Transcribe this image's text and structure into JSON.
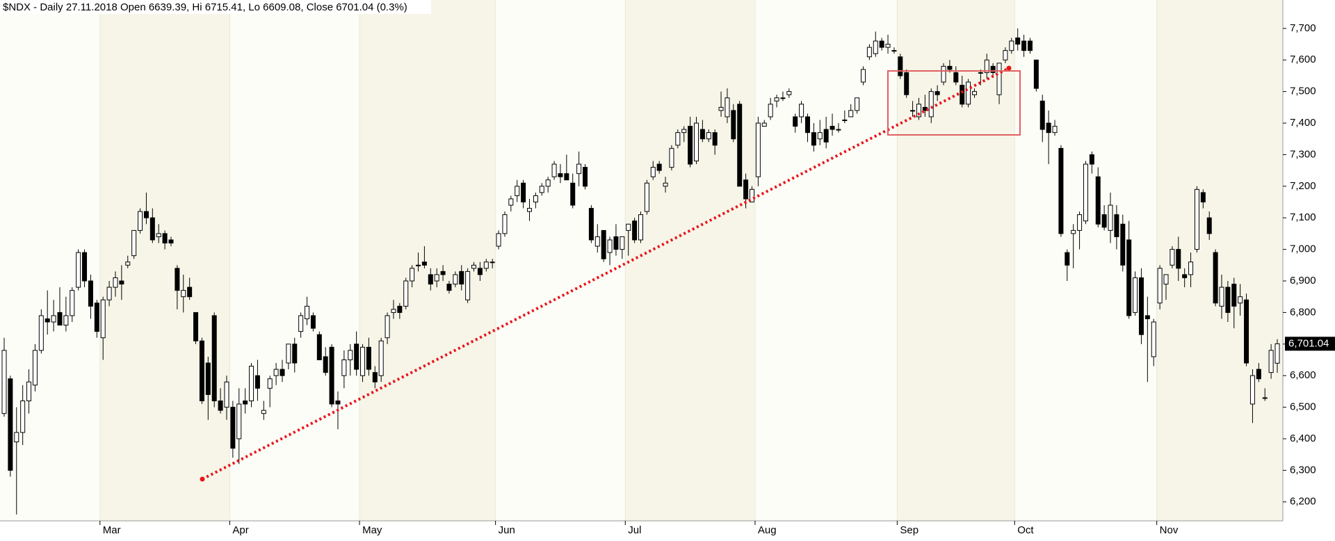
{
  "chart_data": {
    "type": "candlestick",
    "title": "$NDX - Daily 27.11.2018 Open 6639.39, Hi 6715.41, Lo 6609.08, Close 6701.04 (0.3%)",
    "categories": [
      null,
      null,
      null,
      null,
      null,
      null,
      null,
      null,
      null,
      null,
      null,
      null,
      null,
      null,
      null,
      null,
      "Mar",
      null,
      null,
      null,
      null,
      null,
      null,
      null,
      null,
      null,
      null,
      null,
      null,
      null,
      null,
      null,
      null,
      null,
      null,
      null,
      null,
      "Apr",
      null,
      null,
      null,
      null,
      null,
      null,
      null,
      null,
      null,
      null,
      null,
      null,
      null,
      null,
      null,
      null,
      null,
      null,
      null,
      null,
      "May",
      null,
      null,
      null,
      null,
      null,
      null,
      null,
      null,
      null,
      null,
      null,
      null,
      null,
      null,
      null,
      null,
      null,
      null,
      null,
      null,
      null,
      "Jun",
      null,
      null,
      null,
      null,
      null,
      null,
      null,
      null,
      null,
      null,
      null,
      null,
      null,
      null,
      null,
      null,
      null,
      null,
      null,
      null,
      "Jul",
      null,
      null,
      null,
      null,
      null,
      null,
      null,
      null,
      null,
      null,
      null,
      null,
      null,
      null,
      null,
      null,
      null,
      null,
      null,
      null,
      "Aug",
      null,
      null,
      null,
      null,
      null,
      null,
      null,
      null,
      null,
      null,
      null,
      null,
      null,
      null,
      null,
      null,
      null,
      null,
      null,
      null,
      null,
      null,
      "Sep",
      null,
      null,
      null,
      null,
      null,
      null,
      null,
      null,
      null,
      null,
      null,
      null,
      null,
      null,
      null,
      null,
      null,
      null,
      "Oct",
      null,
      null,
      null,
      null,
      null,
      null,
      null,
      null,
      null,
      null,
      null,
      null,
      null,
      null,
      null,
      null,
      null,
      null,
      null,
      null,
      null,
      null,
      "Nov",
      null,
      null,
      null,
      null,
      null,
      null,
      null,
      null,
      null,
      null,
      null,
      null,
      null,
      null,
      null,
      null,
      null,
      null,
      null
    ],
    "ohlc": [
      [
        6480,
        6720,
        6470,
        6680
      ],
      [
        6590,
        6600,
        6280,
        6300
      ],
      [
        6390,
        6500,
        6160,
        6420
      ],
      [
        6420,
        6570,
        6380,
        6520
      ],
      [
        6520,
        6620,
        6480,
        6580
      ],
      [
        6570,
        6700,
        6550,
        6680
      ],
      [
        6680,
        6810,
        6670,
        6790
      ],
      [
        6780,
        6870,
        6730,
        6770
      ],
      [
        6770,
        6840,
        6740,
        6790
      ],
      [
        6800,
        6880,
        6770,
        6760
      ],
      [
        6760,
        6850,
        6740,
        6790
      ],
      [
        6790,
        6880,
        6770,
        6870
      ],
      [
        6880,
        7000,
        6870,
        6990
      ],
      [
        6990,
        7000,
        6880,
        6900
      ],
      [
        6900,
        6920,
        6780,
        6820
      ],
      [
        6830,
        6840,
        6720,
        6740
      ],
      [
        6720,
        6850,
        6650,
        6840
      ],
      [
        6840,
        6900,
        6820,
        6880
      ],
      [
        6880,
        6930,
        6850,
        6910
      ],
      [
        6900,
        6950,
        6840,
        6890
      ],
      [
        6950,
        6980,
        6940,
        6960
      ],
      [
        6980,
        7060,
        6970,
        7060
      ],
      [
        7060,
        7130,
        7050,
        7120
      ],
      [
        7120,
        7180,
        7080,
        7100
      ],
      [
        7100,
        7130,
        7020,
        7030
      ],
      [
        7040,
        7080,
        7020,
        7050
      ],
      [
        7050,
        7060,
        7000,
        7020
      ],
      [
        7030,
        7040,
        7010,
        7020
      ],
      [
        6940,
        6950,
        6810,
        6870
      ],
      [
        6850,
        6920,
        6800,
        6870
      ],
      [
        6880,
        6910,
        6840,
        6850
      ],
      [
        6800,
        6800,
        6700,
        6710
      ],
      [
        6710,
        6720,
        6510,
        6520
      ],
      [
        6640,
        6660,
        6460,
        6540
      ],
      [
        6790,
        6800,
        6500,
        6520
      ],
      [
        6520,
        6560,
        6480,
        6490
      ],
      [
        6500,
        6600,
        6460,
        6580
      ],
      [
        6500,
        6520,
        6340,
        6370
      ],
      [
        6400,
        6560,
        6320,
        6510
      ],
      [
        6520,
        6560,
        6480,
        6510
      ],
      [
        6520,
        6640,
        6500,
        6630
      ],
      [
        6600,
        6650,
        6520,
        6560
      ],
      [
        6480,
        6520,
        6460,
        6490
      ],
      [
        6560,
        6600,
        6500,
        6590
      ],
      [
        6600,
        6640,
        6570,
        6620
      ],
      [
        6620,
        6650,
        6580,
        6600
      ],
      [
        6640,
        6700,
        6620,
        6700
      ],
      [
        6700,
        6720,
        6610,
        6640
      ],
      [
        6740,
        6800,
        6720,
        6790
      ],
      [
        6780,
        6850,
        6760,
        6820
      ],
      [
        6790,
        6800,
        6740,
        6750
      ],
      [
        6730,
        6740,
        6650,
        6650
      ],
      [
        6660,
        6690,
        6600,
        6610
      ],
      [
        6690,
        6700,
        6500,
        6510
      ],
      [
        6520,
        6550,
        6430,
        6510
      ],
      [
        6600,
        6680,
        6560,
        6650
      ],
      [
        6650,
        6700,
        6600,
        6680
      ],
      [
        6700,
        6740,
        6600,
        6620
      ],
      [
        6600,
        6700,
        6580,
        6690
      ],
      [
        6690,
        6720,
        6600,
        6620
      ],
      [
        6610,
        6630,
        6560,
        6580
      ],
      [
        6600,
        6720,
        6580,
        6710
      ],
      [
        6720,
        6800,
        6700,
        6790
      ],
      [
        6800,
        6840,
        6780,
        6810
      ],
      [
        6820,
        6830,
        6780,
        6800
      ],
      [
        6820,
        6910,
        6810,
        6900
      ],
      [
        6900,
        6950,
        6880,
        6940
      ],
      [
        6950,
        6990,
        6930,
        6950
      ],
      [
        6960,
        7010,
        6940,
        6950
      ],
      [
        6920,
        6940,
        6870,
        6890
      ],
      [
        6900,
        6940,
        6880,
        6920
      ],
      [
        6930,
        6950,
        6900,
        6920
      ],
      [
        6890,
        6900,
        6860,
        6870
      ],
      [
        6890,
        6930,
        6880,
        6920
      ],
      [
        6930,
        6950,
        6870,
        6890
      ],
      [
        6840,
        6940,
        6830,
        6930
      ],
      [
        6940,
        6960,
        6930,
        6950
      ],
      [
        6940,
        6960,
        6900,
        6920
      ],
      [
        6940,
        6970,
        6930,
        6960
      ],
      [
        6960,
        6970,
        6940,
        6960
      ],
      [
        7010,
        7060,
        7000,
        7050
      ],
      [
        7050,
        7120,
        7040,
        7110
      ],
      [
        7140,
        7170,
        7120,
        7160
      ],
      [
        7170,
        7220,
        7150,
        7200
      ],
      [
        7210,
        7220,
        7130,
        7150
      ],
      [
        7120,
        7160,
        7090,
        7130
      ],
      [
        7150,
        7180,
        7130,
        7170
      ],
      [
        7180,
        7210,
        7170,
        7200
      ],
      [
        7200,
        7230,
        7180,
        7220
      ],
      [
        7230,
        7280,
        7220,
        7270
      ],
      [
        7240,
        7270,
        7210,
        7230
      ],
      [
        7240,
        7300,
        7220,
        7220
      ],
      [
        7210,
        7240,
        7130,
        7140
      ],
      [
        7240,
        7310,
        7200,
        7270
      ],
      [
        7260,
        7270,
        7190,
        7200
      ],
      [
        7130,
        7140,
        7020,
        7030
      ],
      [
        7010,
        7080,
        6990,
        7040
      ],
      [
        7060,
        7060,
        6960,
        6970
      ],
      [
        6990,
        7040,
        6950,
        7030
      ],
      [
        7040,
        7080,
        6980,
        7000
      ],
      [
        7000,
        7040,
        6970,
        7040
      ],
      [
        7060,
        7080,
        6980,
        7080
      ],
      [
        7090,
        7100,
        7020,
        7030
      ],
      [
        7030,
        7120,
        7020,
        7110
      ],
      [
        7120,
        7220,
        7110,
        7210
      ],
      [
        7230,
        7280,
        7220,
        7260
      ],
      [
        7270,
        7280,
        7240,
        7250
      ],
      [
        7200,
        7230,
        7180,
        7210
      ],
      [
        7260,
        7330,
        7250,
        7320
      ],
      [
        7330,
        7380,
        7320,
        7370
      ],
      [
        7370,
        7390,
        7340,
        7380
      ],
      [
        7390,
        7420,
        7260,
        7270
      ],
      [
        7280,
        7420,
        7270,
        7400
      ],
      [
        7380,
        7410,
        7340,
        7350
      ],
      [
        7350,
        7380,
        7340,
        7370
      ],
      [
        7370,
        7380,
        7300,
        7330
      ],
      [
        7440,
        7500,
        7420,
        7450
      ],
      [
        7420,
        7510,
        7400,
        7480
      ],
      [
        7440,
        7460,
        7340,
        7350
      ],
      [
        7460,
        7470,
        7200,
        7200
      ],
      [
        7220,
        7240,
        7130,
        7160
      ],
      [
        7150,
        7200,
        7150,
        7190
      ],
      [
        7230,
        7420,
        7200,
        7400
      ],
      [
        7390,
        7410,
        7390,
        7400
      ],
      [
        7420,
        7480,
        7410,
        7460
      ],
      [
        7470,
        7490,
        7450,
        7480
      ],
      [
        7480,
        7500,
        7470,
        7480
      ],
      [
        7490,
        7510,
        7480,
        7500
      ],
      [
        7420,
        7430,
        7370,
        7390
      ],
      [
        7420,
        7470,
        7400,
        7460
      ],
      [
        7420,
        7430,
        7340,
        7370
      ],
      [
        7370,
        7400,
        7310,
        7330
      ],
      [
        7350,
        7410,
        7330,
        7370
      ],
      [
        7380,
        7420,
        7320,
        7340
      ],
      [
        7390,
        7430,
        7360,
        7380
      ],
      [
        7380,
        7400,
        7370,
        7380
      ],
      [
        7410,
        7440,
        7400,
        7410
      ],
      [
        7420,
        7460,
        7420,
        7440
      ],
      [
        7440,
        7480,
        7430,
        7480
      ],
      [
        7530,
        7580,
        7520,
        7570
      ],
      [
        7610,
        7650,
        7600,
        7640
      ],
      [
        7620,
        7690,
        7610,
        7660
      ],
      [
        7660,
        7670,
        7630,
        7640
      ],
      [
        7640,
        7680,
        7620,
        7650
      ],
      [
        7630,
        7640,
        7620,
        7630
      ],
      [
        7610,
        7620,
        7540,
        7550
      ],
      [
        7560,
        7570,
        7480,
        7490
      ],
      [
        7440,
        7470,
        7420,
        7440
      ],
      [
        7420,
        7480,
        7410,
        7460
      ],
      [
        7450,
        7490,
        7420,
        7440
      ],
      [
        7420,
        7510,
        7400,
        7500
      ],
      [
        7500,
        7520,
        7470,
        7490
      ],
      [
        7530,
        7590,
        7520,
        7580
      ],
      [
        7580,
        7600,
        7560,
        7570
      ],
      [
        7560,
        7580,
        7520,
        7530
      ],
      [
        7520,
        7550,
        7450,
        7460
      ],
      [
        7460,
        7540,
        7450,
        7530
      ],
      [
        7490,
        7510,
        7480,
        7500
      ],
      [
        7560,
        7570,
        7520,
        7560
      ],
      [
        7560,
        7620,
        7540,
        7600
      ],
      [
        7580,
        7590,
        7550,
        7560
      ],
      [
        7490,
        7590,
        7460,
        7590
      ],
      [
        7600,
        7640,
        7590,
        7630
      ],
      [
        7630,
        7670,
        7620,
        7660
      ],
      [
        7670,
        7700,
        7630,
        7650
      ],
      [
        7660,
        7680,
        7610,
        7630
      ],
      [
        7660,
        7670,
        7620,
        7630
      ],
      [
        7600,
        7600,
        7500,
        7510
      ],
      [
        7470,
        7490,
        7340,
        7380
      ],
      [
        7400,
        7440,
        7270,
        7370
      ],
      [
        7370,
        7410,
        7360,
        7390
      ],
      [
        7320,
        7330,
        7040,
        7050
      ],
      [
        6990,
        7000,
        6900,
        6950
      ],
      [
        7050,
        7080,
        6940,
        7060
      ],
      [
        7060,
        7120,
        7000,
        7110
      ],
      [
        7090,
        7280,
        7080,
        7270
      ],
      [
        7300,
        7310,
        7240,
        7270
      ],
      [
        7230,
        7260,
        7070,
        7080
      ],
      [
        7110,
        7140,
        7060,
        7070
      ],
      [
        7060,
        7180,
        7020,
        7140
      ],
      [
        7110,
        7140,
        7000,
        7040
      ],
      [
        7080,
        7110,
        6930,
        6950
      ],
      [
        7030,
        7090,
        6780,
        6790
      ],
      [
        6800,
        6930,
        6790,
        6910
      ],
      [
        6910,
        6940,
        6700,
        6730
      ],
      [
        6790,
        6850,
        6580,
        6780
      ],
      [
        6660,
        6780,
        6630,
        6770
      ],
      [
        6830,
        6950,
        6810,
        6940
      ],
      [
        6890,
        6920,
        6840,
        6920
      ],
      [
        6950,
        7010,
        6940,
        7000
      ],
      [
        7000,
        7040,
        6900,
        6940
      ],
      [
        6920,
        6940,
        6880,
        6910
      ],
      [
        6920,
        6990,
        6880,
        6960
      ],
      [
        7000,
        7200,
        6990,
        7190
      ],
      [
        7180,
        7190,
        7130,
        7150
      ],
      [
        7100,
        7120,
        7030,
        7050
      ],
      [
        6990,
        7000,
        6820,
        6830
      ],
      [
        6820,
        6920,
        6780,
        6880
      ],
      [
        6880,
        6900,
        6770,
        6800
      ],
      [
        6890,
        6910,
        6750,
        6820
      ],
      [
        6830,
        6890,
        6790,
        6850
      ],
      [
        6840,
        6860,
        6630,
        6640
      ],
      [
        6510,
        6620,
        6450,
        6600
      ],
      [
        6620,
        6640,
        6580,
        6590
      ],
      [
        6530,
        6560,
        6520,
        6530
      ],
      [
        6610,
        6700,
        6590,
        6680
      ],
      [
        6639.39,
        6715.41,
        6609.08,
        6701.04
      ]
    ],
    "up_color": "#ffffff",
    "down_color": "#000000",
    "last_close_label": "6,701.04",
    "ylim": [
      6140,
      7790
    ],
    "yticks": [
      {
        "value": 6200,
        "label": "6,200"
      },
      {
        "value": 6300,
        "label": "6,300"
      },
      {
        "value": 6400,
        "label": "6,400"
      },
      {
        "value": 6500,
        "label": "6,500"
      },
      {
        "value": 6600,
        "label": "6,600"
      },
      {
        "value": 6700,
        "label": "6,700"
      },
      {
        "value": 6800,
        "label": "6,800"
      },
      {
        "value": 6900,
        "label": "6,900"
      },
      {
        "value": 7000,
        "label": "7,000"
      },
      {
        "value": 7100,
        "label": "7,100"
      },
      {
        "value": 7200,
        "label": "7,200"
      },
      {
        "value": 7300,
        "label": "7,300"
      },
      {
        "value": 7400,
        "label": "7,400"
      },
      {
        "value": 7500,
        "label": "7,500"
      },
      {
        "value": 7600,
        "label": "7,600"
      },
      {
        "value": 7700,
        "label": "7,700"
      }
    ]
  }
}
